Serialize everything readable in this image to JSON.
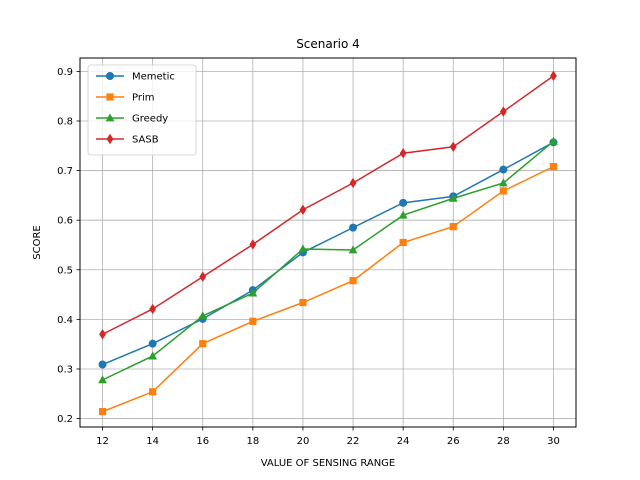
{
  "chart_data": {
    "type": "line",
    "title": "Scenario 4",
    "xlabel": "VALUE OF SENSING RANGE",
    "ylabel": "SCORE",
    "x": [
      12,
      14,
      16,
      18,
      20,
      22,
      24,
      26,
      28,
      30
    ],
    "xlim": [
      11.1,
      30.9
    ],
    "ylim": [
      0.183,
      0.927
    ],
    "yticks": [
      0.2,
      0.3,
      0.4,
      0.5,
      0.6,
      0.7,
      0.8,
      0.9
    ],
    "ytick_labels": [
      "0.2",
      "0.3",
      "0.4",
      "0.5",
      "0.6",
      "0.7",
      "0.8",
      "0.9"
    ],
    "xtick_labels": [
      "12",
      "14",
      "16",
      "18",
      "20",
      "22",
      "24",
      "26",
      "28",
      "30"
    ],
    "grid": true,
    "legend_position": "top-left",
    "series": [
      {
        "name": "Memetic",
        "color": "#1f77b4",
        "marker": "circle",
        "values": [
          0.309,
          0.351,
          0.401,
          0.459,
          0.535,
          0.585,
          0.635,
          0.648,
          0.702,
          0.757
        ]
      },
      {
        "name": "Prim",
        "color": "#ff7f0e",
        "marker": "square",
        "values": [
          0.214,
          0.254,
          0.351,
          0.396,
          0.434,
          0.478,
          0.555,
          0.587,
          0.659,
          0.708
        ]
      },
      {
        "name": "Greedy",
        "color": "#2ca02c",
        "marker": "triangle",
        "values": [
          0.278,
          0.326,
          0.407,
          0.453,
          0.542,
          0.54,
          0.61,
          0.644,
          0.675,
          0.759
        ]
      },
      {
        "name": "SASB",
        "color": "#d62728",
        "marker": "diamond",
        "values": [
          0.37,
          0.421,
          0.486,
          0.551,
          0.621,
          0.675,
          0.735,
          0.748,
          0.819,
          0.891
        ]
      }
    ]
  }
}
